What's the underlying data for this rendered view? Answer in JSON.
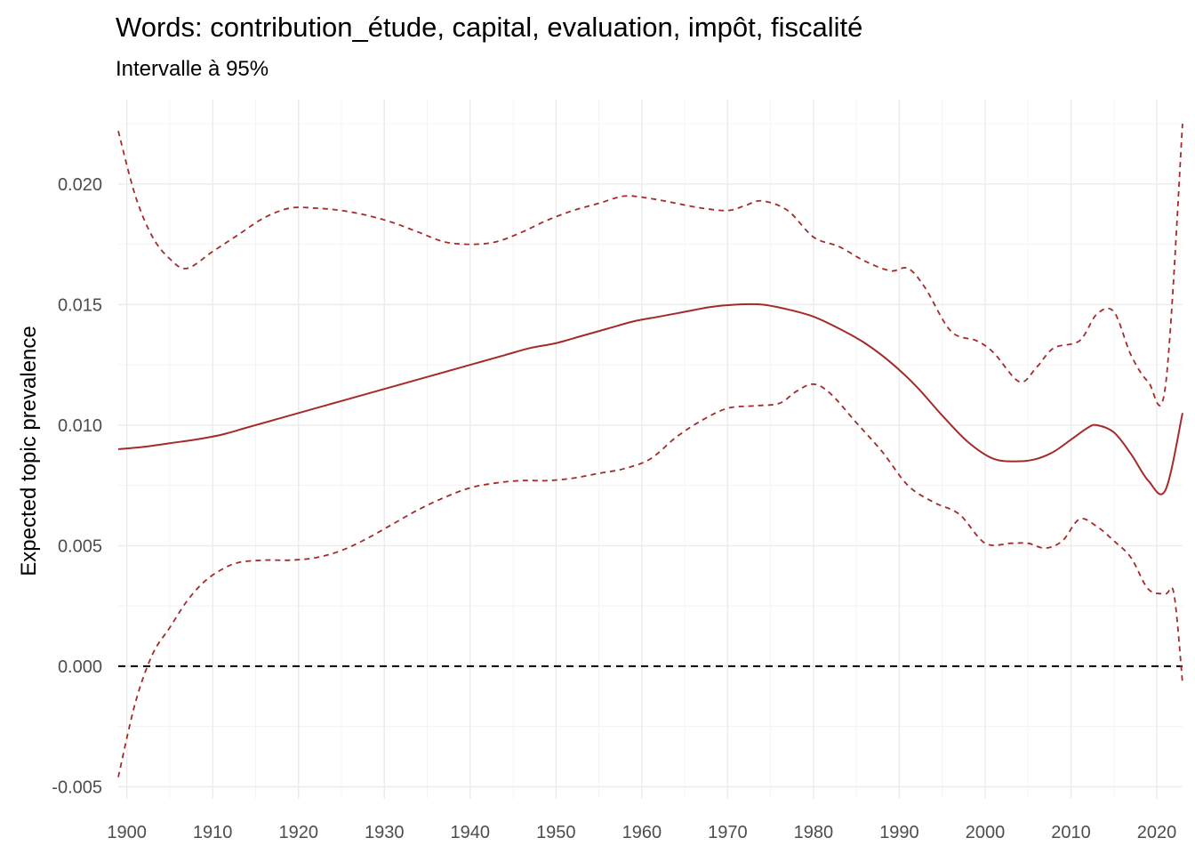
{
  "chart_data": {
    "type": "line",
    "title": "Words: contribution_étude, capital, evaluation, impôt, fiscalité",
    "subtitle": "Intervalle à 95%",
    "xlabel": "",
    "ylabel": "Expected topic prevalence",
    "xlim": [
      1899,
      2023
    ],
    "ylim": [
      -0.0055,
      0.0235
    ],
    "x_ticks": [
      1900,
      1910,
      1920,
      1930,
      1940,
      1950,
      1960,
      1970,
      1980,
      1990,
      2000,
      2010,
      2020
    ],
    "y_ticks": [
      -0.005,
      0.0,
      0.005,
      0.01,
      0.015,
      0.02
    ],
    "y_tick_labels": [
      "-0.005",
      "0.000",
      "0.005",
      "0.010",
      "0.015",
      "0.020"
    ],
    "grid": true,
    "colors": {
      "series": "#a52a2a",
      "reference": "#000000"
    },
    "reference_line": {
      "y": 0.0,
      "style": "dashed"
    },
    "series": [
      {
        "role": "estimate",
        "style": "solid",
        "x": [
          1899,
          1902,
          1905,
          1908,
          1911,
          1914,
          1917,
          1920,
          1923,
          1926,
          1929,
          1932,
          1935,
          1938,
          1941,
          1944,
          1947,
          1950,
          1953,
          1956,
          1959,
          1962,
          1965,
          1968,
          1971,
          1974,
          1977,
          1980,
          1983,
          1986,
          1989,
          1992,
          1995,
          1998,
          2001,
          2004,
          2006,
          2008,
          2010,
          2012,
          2013,
          2015,
          2017,
          2019,
          2021,
          2023
        ],
        "y": [
          0.009,
          0.0091,
          0.00925,
          0.0094,
          0.0096,
          0.0099,
          0.0102,
          0.0105,
          0.0108,
          0.0111,
          0.0114,
          0.0117,
          0.012,
          0.0123,
          0.0126,
          0.0129,
          0.0132,
          0.0134,
          0.0137,
          0.014,
          0.0143,
          0.0145,
          0.0147,
          0.0149,
          0.015,
          0.015,
          0.0148,
          0.0145,
          0.014,
          0.0134,
          0.0126,
          0.0116,
          0.0104,
          0.0093,
          0.0086,
          0.0085,
          0.0086,
          0.0089,
          0.0094,
          0.0099,
          0.01,
          0.0097,
          0.0088,
          0.0077,
          0.0073,
          0.0105
        ]
      },
      {
        "role": "upper",
        "style": "dashed",
        "x": [
          1899,
          1901,
          1903,
          1905,
          1907,
          1910,
          1913,
          1916,
          1919,
          1922,
          1925,
          1928,
          1931,
          1934,
          1937,
          1940,
          1943,
          1946,
          1949,
          1952,
          1955,
          1958,
          1961,
          1964,
          1967,
          1970,
          1972,
          1974,
          1977,
          1980,
          1983,
          1986,
          1989,
          1991,
          1993,
          1996,
          1999,
          2001,
          2004,
          2006,
          2008,
          2011,
          2013,
          2015,
          2017,
          2019,
          2021,
          2023
        ],
        "y": [
          0.0222,
          0.0195,
          0.0178,
          0.0169,
          0.0165,
          0.0172,
          0.0179,
          0.0186,
          0.019,
          0.019,
          0.0189,
          0.0187,
          0.0184,
          0.018,
          0.0176,
          0.0175,
          0.0176,
          0.018,
          0.0185,
          0.0189,
          0.0192,
          0.0195,
          0.0194,
          0.0192,
          0.019,
          0.0189,
          0.0191,
          0.0193,
          0.0189,
          0.0178,
          0.0174,
          0.0168,
          0.0164,
          0.0165,
          0.0157,
          0.0139,
          0.0135,
          0.013,
          0.0118,
          0.0124,
          0.0132,
          0.0135,
          0.0146,
          0.0147,
          0.0129,
          0.0118,
          0.0116,
          0.0225
        ]
      },
      {
        "role": "lower",
        "style": "dashed",
        "x": [
          1899,
          1901,
          1903,
          1905,
          1907,
          1909,
          1911,
          1913,
          1916,
          1919,
          1922,
          1925,
          1928,
          1931,
          1934,
          1937,
          1940,
          1943,
          1946,
          1949,
          1952,
          1955,
          1958,
          1961,
          1964,
          1967,
          1970,
          1973,
          1976,
          1978,
          1980,
          1982,
          1985,
          1988,
          1991,
          1994,
          1997,
          2000,
          2003,
          2005,
          2007,
          2009,
          2011,
          2013,
          2015,
          2017,
          2019,
          2021,
          2022,
          2023
        ],
        "y": [
          -0.0046,
          -0.0015,
          0.0005,
          0.0016,
          0.0027,
          0.0035,
          0.004,
          0.0043,
          0.0044,
          0.0044,
          0.0045,
          0.0048,
          0.0053,
          0.0059,
          0.0065,
          0.007,
          0.0074,
          0.0076,
          0.0077,
          0.0077,
          0.0078,
          0.008,
          0.0082,
          0.0086,
          0.0095,
          0.0102,
          0.0107,
          0.0108,
          0.0109,
          0.0114,
          0.0117,
          0.0113,
          0.0101,
          0.0089,
          0.0075,
          0.0068,
          0.0063,
          0.0051,
          0.0051,
          0.0051,
          0.0049,
          0.0052,
          0.0061,
          0.0058,
          0.0052,
          0.0045,
          0.0032,
          0.003,
          0.003,
          -0.0007
        ]
      }
    ]
  }
}
